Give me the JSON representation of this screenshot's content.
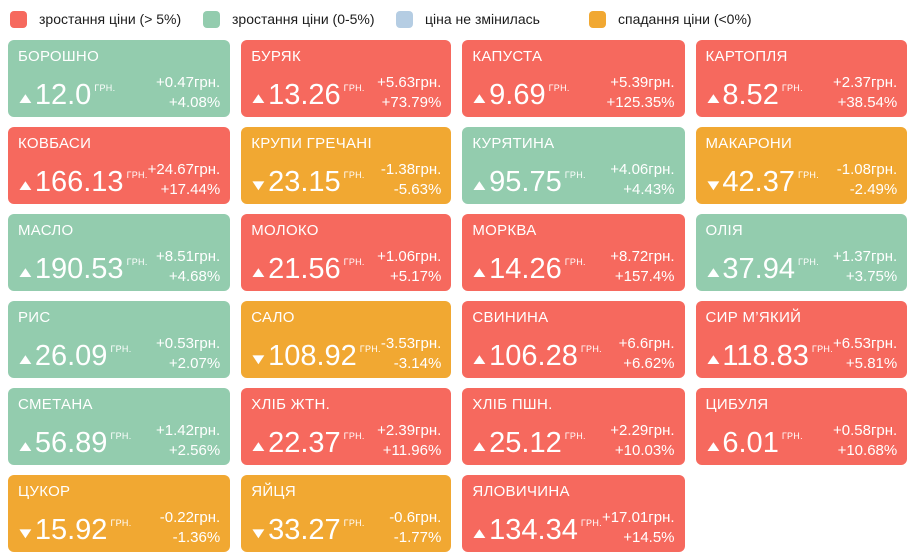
{
  "colors": {
    "increase_gt5": "#f6695e",
    "increase_0_5": "#93ccae",
    "unchanged": "#b5cde3",
    "decrease": "#f1a832",
    "page_bg": "#ffffff",
    "tile_text": "#ffffff",
    "legend_text": "#1c1c1c"
  },
  "icons": {
    "up": "▲",
    "down": "▼"
  },
  "legend": {
    "items": [
      {
        "label": "зростання ціни (> 5%)",
        "category": "increase_gt5"
      },
      {
        "label": "зростання ціни (0-5%)",
        "category": "increase_0_5"
      },
      {
        "label": "ціна не змінилась",
        "category": "unchanged"
      },
      {
        "label": "спадання ціни (<0%)",
        "category": "decrease"
      }
    ]
  },
  "board": {
    "currency_label": "ГРН.",
    "tiles": [
      {
        "name": "БОРОШНО",
        "price": "12.0",
        "direction": "up",
        "change": "+0.47грн.",
        "percent": "+4.08%",
        "category": "increase_0_5"
      },
      {
        "name": "БУРЯК",
        "price": "13.26",
        "direction": "up",
        "change": "+5.63грн.",
        "percent": "+73.79%",
        "category": "increase_gt5"
      },
      {
        "name": "КАПУСТА",
        "price": "9.69",
        "direction": "up",
        "change": "+5.39грн.",
        "percent": "+125.35%",
        "category": "increase_gt5"
      },
      {
        "name": "КАРТОПЛЯ",
        "price": "8.52",
        "direction": "up",
        "change": "+2.37грн.",
        "percent": "+38.54%",
        "category": "increase_gt5"
      },
      {
        "name": "КОВБАСИ",
        "price": "166.13",
        "direction": "up",
        "change": "+24.67грн.",
        "percent": "+17.44%",
        "category": "increase_gt5"
      },
      {
        "name": "КРУПИ ГРЕЧАНІ",
        "price": "23.15",
        "direction": "down",
        "change": "-1.38грн.",
        "percent": "-5.63%",
        "category": "decrease"
      },
      {
        "name": "КУРЯТИНА",
        "price": "95.75",
        "direction": "up",
        "change": "+4.06грн.",
        "percent": "+4.43%",
        "category": "increase_0_5"
      },
      {
        "name": "МАКАРОНИ",
        "price": "42.37",
        "direction": "down",
        "change": "-1.08грн.",
        "percent": "-2.49%",
        "category": "decrease"
      },
      {
        "name": "МАСЛО",
        "price": "190.53",
        "direction": "up",
        "change": "+8.51грн.",
        "percent": "+4.68%",
        "category": "increase_0_5"
      },
      {
        "name": "МОЛОКО",
        "price": "21.56",
        "direction": "up",
        "change": "+1.06грн.",
        "percent": "+5.17%",
        "category": "increase_gt5"
      },
      {
        "name": "МОРКВА",
        "price": "14.26",
        "direction": "up",
        "change": "+8.72грн.",
        "percent": "+157.4%",
        "category": "increase_gt5"
      },
      {
        "name": "ОЛІЯ",
        "price": "37.94",
        "direction": "up",
        "change": "+1.37грн.",
        "percent": "+3.75%",
        "category": "increase_0_5"
      },
      {
        "name": "РИС",
        "price": "26.09",
        "direction": "up",
        "change": "+0.53грн.",
        "percent": "+2.07%",
        "category": "increase_0_5"
      },
      {
        "name": "САЛО",
        "price": "108.92",
        "direction": "down",
        "change": "-3.53грн.",
        "percent": "-3.14%",
        "category": "decrease"
      },
      {
        "name": "СВИНИНА",
        "price": "106.28",
        "direction": "up",
        "change": "+6.6грн.",
        "percent": "+6.62%",
        "category": "increase_gt5"
      },
      {
        "name": "СИР М’ЯКИЙ",
        "price": "118.83",
        "direction": "up",
        "change": "+6.53грн.",
        "percent": "+5.81%",
        "category": "increase_gt5"
      },
      {
        "name": "СМЕТАНА",
        "price": "56.89",
        "direction": "up",
        "change": "+1.42грн.",
        "percent": "+2.56%",
        "category": "increase_0_5"
      },
      {
        "name": "ХЛІБ ЖТН.",
        "price": "22.37",
        "direction": "up",
        "change": "+2.39грн.",
        "percent": "+11.96%",
        "category": "increase_gt5"
      },
      {
        "name": "ХЛІБ ПШН.",
        "price": "25.12",
        "direction": "up",
        "change": "+2.29грн.",
        "percent": "+10.03%",
        "category": "increase_gt5"
      },
      {
        "name": "ЦИБУЛЯ",
        "price": "6.01",
        "direction": "up",
        "change": "+0.58грн.",
        "percent": "+10.68%",
        "category": "increase_gt5"
      },
      {
        "name": "ЦУКОР",
        "price": "15.92",
        "direction": "down",
        "change": "-0.22грн.",
        "percent": "-1.36%",
        "category": "decrease"
      },
      {
        "name": "ЯЙЦЯ",
        "price": "33.27",
        "direction": "down",
        "change": "-0.6грн.",
        "percent": "-1.77%",
        "category": "decrease"
      },
      {
        "name": "ЯЛОВИЧИНА",
        "price": "134.34",
        "direction": "up",
        "change": "+17.01грн.",
        "percent": "+14.5%",
        "category": "increase_gt5"
      }
    ]
  },
  "chart_data": {
    "type": "heatmap",
    "title": "",
    "legend_position": "top",
    "legend_entries": [
      "зростання ціни (> 5%)",
      "зростання ціни (0-5%)",
      "ціна не змінилась",
      "спадання ціни (<0%)"
    ],
    "layout": "4 columns × 6 rows of product tiles, color-coded by price-change category",
    "categories": [
      "БОРОШНО",
      "БУРЯК",
      "КАПУСТА",
      "КАРТОПЛЯ",
      "КОВБАСИ",
      "КРУПИ ГРЕЧАНІ",
      "КУРЯТИНА",
      "МАКАРОНИ",
      "МАСЛО",
      "МОЛОКО",
      "МОРКВА",
      "ОЛІЯ",
      "РИС",
      "САЛО",
      "СВИНИНА",
      "СИР М’ЯКИЙ",
      "СМЕТАНА",
      "ХЛІБ ЖТН.",
      "ХЛІБ ПШН.",
      "ЦИБУЛЯ",
      "ЦУКОР",
      "ЯЙЦЯ",
      "ЯЛОВИЧИНА"
    ],
    "series": [
      {
        "name": "price_uah",
        "values": [
          12.0,
          13.26,
          9.69,
          8.52,
          166.13,
          23.15,
          95.75,
          42.37,
          190.53,
          21.56,
          14.26,
          37.94,
          26.09,
          108.92,
          106.28,
          118.83,
          56.89,
          22.37,
          25.12,
          6.01,
          15.92,
          33.27,
          134.34
        ]
      },
      {
        "name": "change_uah",
        "values": [
          0.47,
          5.63,
          5.39,
          2.37,
          24.67,
          -1.38,
          4.06,
          -1.08,
          8.51,
          1.06,
          8.72,
          1.37,
          0.53,
          -3.53,
          6.6,
          6.53,
          1.42,
          2.39,
          2.29,
          0.58,
          -0.22,
          -0.6,
          17.01
        ]
      },
      {
        "name": "change_pct",
        "values": [
          4.08,
          73.79,
          125.35,
          38.54,
          17.44,
          -5.63,
          4.43,
          -2.49,
          4.68,
          5.17,
          157.4,
          3.75,
          2.07,
          -3.14,
          6.62,
          5.81,
          2.56,
          11.96,
          10.03,
          10.68,
          -1.36,
          -1.77,
          14.5
        ]
      }
    ]
  }
}
